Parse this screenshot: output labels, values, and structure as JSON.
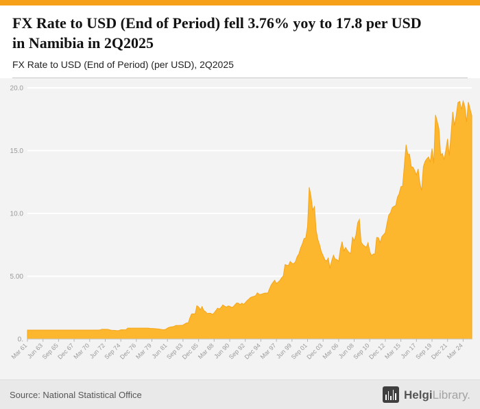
{
  "colors": {
    "accent_topbar": "#F6A01A",
    "area_fill": "#FCB72E",
    "area_stroke": "#F5A51B",
    "plot_background": "#f3f3f3",
    "gridline": "#ffffff",
    "axis_text": "#999999"
  },
  "header": {
    "title": "FX Rate to USD (End of Period) fell 3.76% yoy to 17.8 per USD in Namibia in 2Q2025",
    "subtitle": "FX Rate to USD (End of Period) (per USD), 2Q2025"
  },
  "footer": {
    "source": "Source: National Statistical Office",
    "logo_primary": "Helgi",
    "logo_secondary": "Library."
  },
  "chart_data": {
    "type": "area",
    "title": "FX Rate to USD (End of Period) (per USD), 2Q2025",
    "series_name": "FX Rate to USD (End of Period), per USD, Namibia",
    "frequency": "quarterly",
    "x_start": "Mar 61",
    "x_end": "Jun 25",
    "xlabel": "",
    "ylabel": "",
    "ylim": [
      0,
      20
    ],
    "grid": true,
    "legend": "none",
    "y_ticks": [
      0,
      5,
      10,
      15,
      20
    ],
    "y_tick_labels": [
      "0.",
      "5.00",
      "10.0",
      "15.0",
      "20.0"
    ],
    "x_tick_every": 9,
    "x_tick_labels": [
      "Mar 61",
      "Jun 63",
      "Sep 65",
      "Dec 67",
      "Mar 70",
      "Jun 72",
      "Sep 74",
      "Dec 76",
      "Mar 79",
      "Jun 81",
      "Sep 83",
      "Dec 85",
      "Mar 88",
      "Jun 90",
      "Sep 92",
      "Dec 94",
      "Mar 97",
      "Jun 99",
      "Sep 01",
      "Dec 03",
      "Mar 06",
      "Jun 08",
      "Sep 10",
      "Dec 12",
      "Mar 15",
      "Jun 17",
      "Sep 19",
      "Dec 21",
      "Mar 24"
    ],
    "values": [
      0.71,
      0.71,
      0.71,
      0.71,
      0.71,
      0.71,
      0.71,
      0.71,
      0.71,
      0.71,
      0.71,
      0.71,
      0.71,
      0.71,
      0.71,
      0.71,
      0.71,
      0.71,
      0.71,
      0.71,
      0.71,
      0.71,
      0.71,
      0.71,
      0.71,
      0.71,
      0.71,
      0.71,
      0.71,
      0.71,
      0.71,
      0.71,
      0.71,
      0.71,
      0.71,
      0.71,
      0.71,
      0.71,
      0.71,
      0.71,
      0.71,
      0.71,
      0.72,
      0.77,
      0.77,
      0.77,
      0.77,
      0.75,
      0.71,
      0.69,
      0.69,
      0.68,
      0.66,
      0.68,
      0.73,
      0.74,
      0.73,
      0.74,
      0.87,
      0.87,
      0.87,
      0.87,
      0.87,
      0.87,
      0.87,
      0.87,
      0.87,
      0.87,
      0.87,
      0.87,
      0.87,
      0.84,
      0.84,
      0.83,
      0.82,
      0.81,
      0.8,
      0.77,
      0.75,
      0.74,
      0.77,
      0.87,
      0.93,
      0.96,
      0.98,
      1.02,
      1.09,
      1.07,
      1.09,
      1.09,
      1.11,
      1.2,
      1.28,
      1.27,
      1.7,
      2.0,
      2.0,
      2.0,
      2.65,
      2.56,
      2.32,
      2.58,
      2.26,
      2.18,
      2.03,
      2.05,
      2.05,
      1.95,
      2.08,
      2.26,
      2.46,
      2.38,
      2.52,
      2.71,
      2.63,
      2.53,
      2.63,
      2.61,
      2.52,
      2.56,
      2.72,
      2.87,
      2.86,
      2.74,
      2.86,
      2.76,
      2.89,
      3.05,
      3.17,
      3.3,
      3.36,
      3.4,
      3.45,
      3.68,
      3.56,
      3.55,
      3.6,
      3.65,
      3.66,
      3.65,
      3.99,
      4.3,
      4.5,
      4.68,
      4.41,
      4.53,
      4.66,
      4.87,
      5.03,
      5.93,
      5.87,
      5.86,
      6.18,
      6.03,
      6.0,
      6.15,
      6.55,
      6.78,
      7.25,
      7.57,
      8.0,
      8.05,
      8.96,
      12.09,
      11.37,
      10.27,
      10.54,
      8.64,
      7.91,
      7.49,
      6.95,
      6.64,
      6.31,
      6.21,
      6.45,
      5.63,
      6.24,
      6.67,
      6.35,
      6.33,
      6.18,
      7.16,
      7.76,
      7.0,
      7.29,
      7.06,
      6.89,
      6.81,
      8.1,
      7.83,
      8.28,
      9.25,
      9.52,
      7.72,
      7.51,
      7.4,
      7.3,
      7.66,
      6.97,
      6.63,
      6.77,
      6.77,
      8.09,
      8.07,
      7.67,
      8.16,
      8.31,
      8.47,
      9.23,
      9.88,
      10.06,
      10.47,
      10.56,
      10.63,
      11.29,
      11.57,
      12.13,
      12.17,
      13.86,
      15.47,
      14.71,
      14.71,
      13.72,
      13.68,
      13.41,
      13.06,
      13.55,
      12.36,
      11.83,
      13.72,
      14.15,
      14.35,
      14.5,
      14.08,
      15.16,
      14.0,
      17.84,
      17.32,
      16.75,
      14.65,
      14.77,
      14.27,
      15.06,
      15.94,
      14.6,
      16.27,
      18.09,
      17.0,
      17.79,
      18.83,
      18.92,
      18.29,
      18.94,
      18.5,
      17.27,
      18.87,
      18.32,
      17.8
    ]
  }
}
